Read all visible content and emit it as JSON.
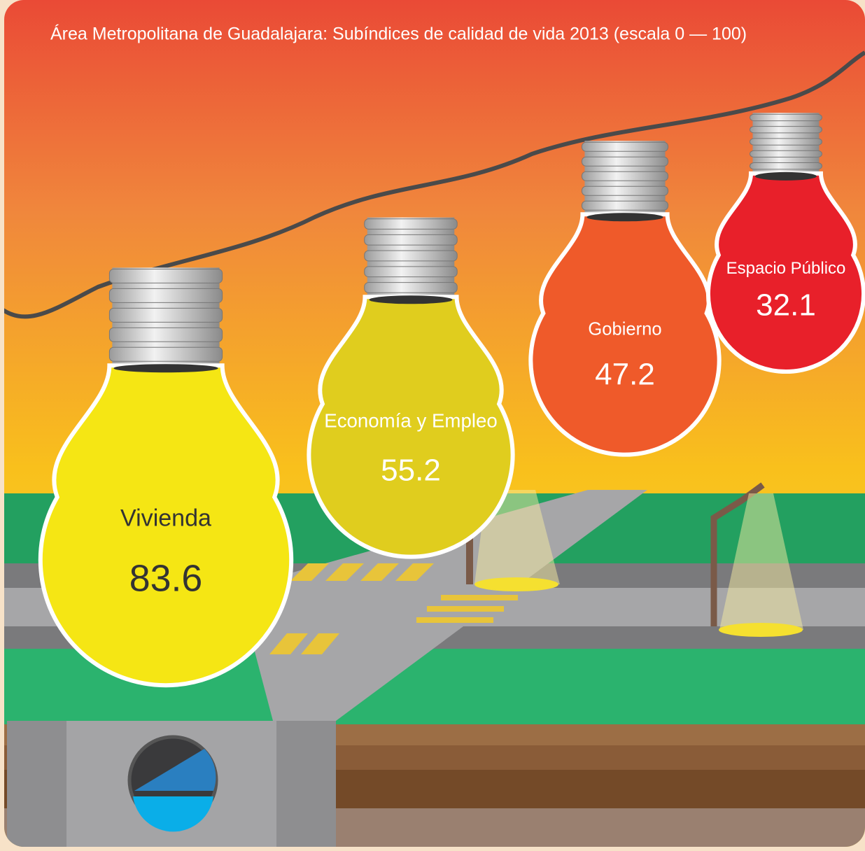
{
  "chart_data": {
    "type": "bulb",
    "title": "Área Metropolitana de Guadalajara: Subíndices de calidad de vida 2013 (escala 0 — 100)",
    "categories": [
      "Vivienda",
      "Economía y Empleo",
      "Gobierno",
      "Espacio Público"
    ],
    "values": [
      83.6,
      55.2,
      47.2,
      32.1
    ],
    "colors": [
      "#f5e614",
      "#e0cd1e",
      "#ef5a2a",
      "#e8202a"
    ]
  }
}
